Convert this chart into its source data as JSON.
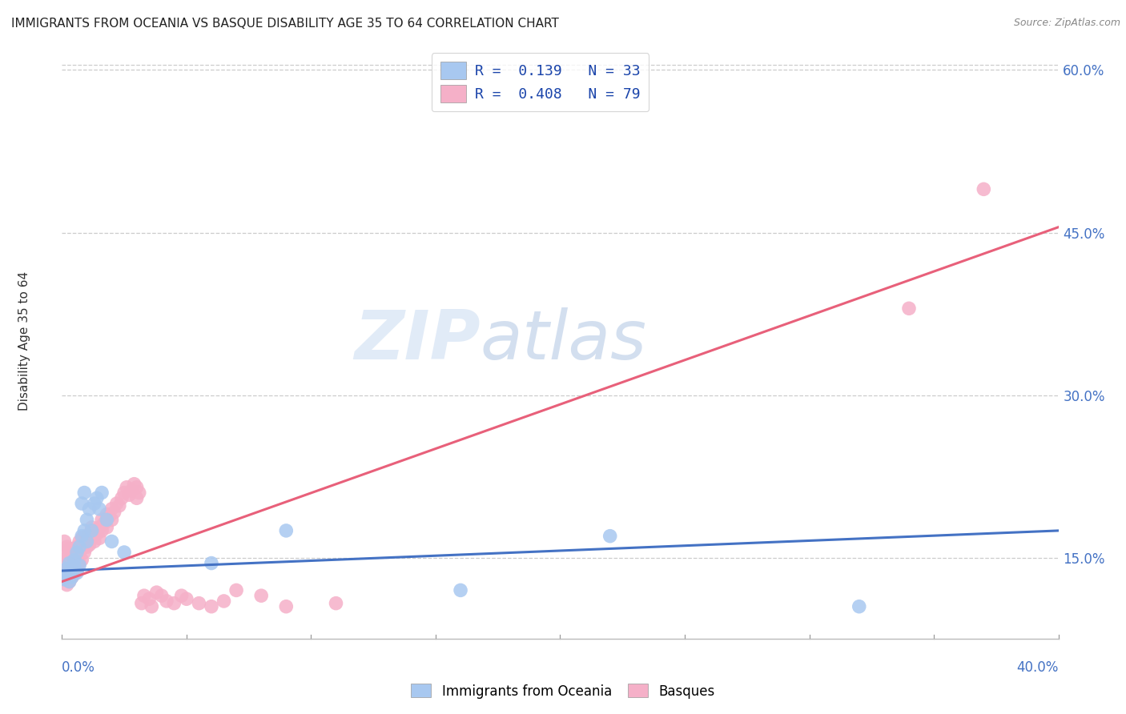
{
  "title": "IMMIGRANTS FROM OCEANIA VS BASQUE DISABILITY AGE 35 TO 64 CORRELATION CHART",
  "source": "Source: ZipAtlas.com",
  "ylabel": "Disability Age 35 to 64",
  "yticks_right": [
    "15.0%",
    "30.0%",
    "45.0%",
    "60.0%"
  ],
  "yticks_right_vals": [
    0.15,
    0.3,
    0.45,
    0.6
  ],
  "legend_label1": "R =  0.139   N = 33",
  "legend_label2": "R =  0.408   N = 79",
  "color_blue": "#a8c8f0",
  "color_pink": "#f5b0c8",
  "color_blue_line": "#4472c4",
  "color_pink_line": "#e8607a",
  "watermark_zip": "ZIP",
  "watermark_atlas": "atlas",
  "blue_scatter_x": [
    0.001,
    0.002,
    0.002,
    0.003,
    0.003,
    0.004,
    0.004,
    0.005,
    0.005,
    0.006,
    0.006,
    0.007,
    0.007,
    0.008,
    0.008,
    0.009,
    0.009,
    0.01,
    0.01,
    0.011,
    0.012,
    0.013,
    0.014,
    0.015,
    0.016,
    0.018,
    0.02,
    0.025,
    0.06,
    0.09,
    0.16,
    0.22,
    0.32
  ],
  "blue_scatter_y": [
    0.13,
    0.135,
    0.14,
    0.128,
    0.145,
    0.132,
    0.138,
    0.142,
    0.148,
    0.136,
    0.155,
    0.16,
    0.143,
    0.2,
    0.17,
    0.21,
    0.175,
    0.185,
    0.165,
    0.195,
    0.175,
    0.2,
    0.205,
    0.195,
    0.21,
    0.185,
    0.165,
    0.155,
    0.145,
    0.175,
    0.12,
    0.17,
    0.105
  ],
  "pink_scatter_x": [
    0.001,
    0.001,
    0.001,
    0.001,
    0.002,
    0.002,
    0.002,
    0.002,
    0.003,
    0.003,
    0.003,
    0.003,
    0.004,
    0.004,
    0.004,
    0.005,
    0.005,
    0.005,
    0.006,
    0.006,
    0.006,
    0.007,
    0.007,
    0.007,
    0.008,
    0.008,
    0.008,
    0.009,
    0.009,
    0.01,
    0.01,
    0.011,
    0.011,
    0.012,
    0.012,
    0.013,
    0.013,
    0.014,
    0.015,
    0.015,
    0.016,
    0.016,
    0.017,
    0.018,
    0.018,
    0.019,
    0.02,
    0.02,
    0.021,
    0.022,
    0.023,
    0.024,
    0.025,
    0.026,
    0.027,
    0.028,
    0.029,
    0.03,
    0.03,
    0.031,
    0.032,
    0.033,
    0.035,
    0.036,
    0.038,
    0.04,
    0.042,
    0.045,
    0.048,
    0.05,
    0.055,
    0.06,
    0.065,
    0.07,
    0.08,
    0.09,
    0.11,
    0.34,
    0.37
  ],
  "pink_scatter_y": [
    0.13,
    0.145,
    0.155,
    0.165,
    0.125,
    0.14,
    0.15,
    0.16,
    0.128,
    0.138,
    0.148,
    0.158,
    0.132,
    0.142,
    0.155,
    0.135,
    0.145,
    0.158,
    0.138,
    0.148,
    0.16,
    0.145,
    0.155,
    0.165,
    0.148,
    0.158,
    0.168,
    0.155,
    0.165,
    0.16,
    0.17,
    0.162,
    0.172,
    0.168,
    0.178,
    0.165,
    0.175,
    0.172,
    0.168,
    0.178,
    0.175,
    0.185,
    0.182,
    0.178,
    0.19,
    0.188,
    0.185,
    0.195,
    0.192,
    0.2,
    0.198,
    0.205,
    0.21,
    0.215,
    0.208,
    0.212,
    0.218,
    0.205,
    0.215,
    0.21,
    0.108,
    0.115,
    0.112,
    0.105,
    0.118,
    0.115,
    0.11,
    0.108,
    0.115,
    0.112,
    0.108,
    0.105,
    0.11,
    0.12,
    0.115,
    0.105,
    0.108,
    0.38,
    0.49
  ],
  "xmin": 0.0,
  "xmax": 0.4,
  "ymin": 0.075,
  "ymax": 0.625,
  "pink_line_x0": 0.0,
  "pink_line_y0": 0.128,
  "pink_line_x1": 0.4,
  "pink_line_y1": 0.455,
  "blue_line_x0": 0.0,
  "blue_line_y0": 0.138,
  "blue_line_x1": 0.4,
  "blue_line_y1": 0.175
}
